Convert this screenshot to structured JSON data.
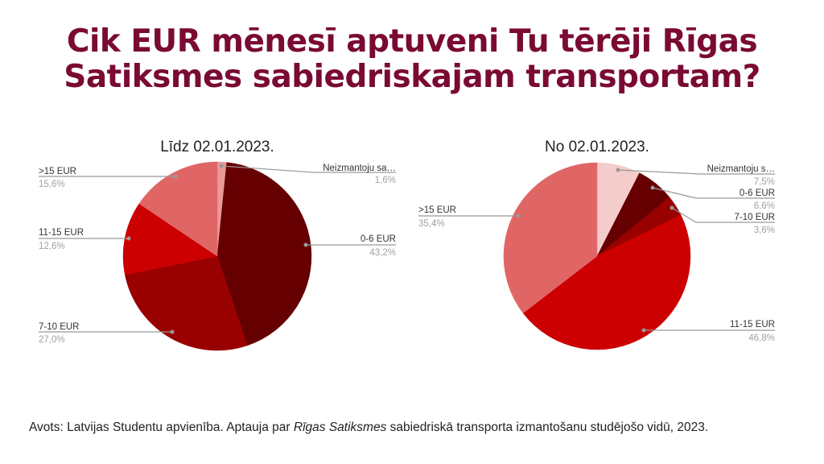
{
  "title_line1": "Cik EUR mēnesī aptuveni Tu tērēji Rīgas",
  "title_line2": "Satiksmes sabiedriskajam transportam?",
  "chart_data": [
    {
      "type": "pie",
      "title": "Līdz 02.01.2023.",
      "labels": [
        "Neizmantoju sa…",
        "0-6 EUR",
        "7-10 EUR",
        "11-15 EUR",
        ">15 EUR"
      ],
      "values": [
        1.6,
        43.2,
        27.0,
        12.6,
        15.6
      ],
      "value_labels": [
        "1,6%",
        "43,2%",
        "27,0%",
        "12,6%",
        "15,6%"
      ],
      "colors": [
        "#ea9999",
        "#660000",
        "#990000",
        "#cc0000",
        "#e06666"
      ]
    },
    {
      "type": "pie",
      "title": "No 02.01.2023.",
      "labels": [
        "Neizmantoju s…",
        "0-6 EUR",
        "7-10 EUR",
        "11-15 EUR",
        ">15 EUR"
      ],
      "values": [
        7.5,
        6.6,
        3.6,
        46.8,
        35.4
      ],
      "value_labels": [
        "7,5%",
        "6,6%",
        "3,6%",
        "46,8%",
        "35,4%"
      ],
      "colors": [
        "#f4cccc",
        "#660000",
        "#990000",
        "#cc0000",
        "#e06666"
      ]
    }
  ],
  "footer": {
    "prefix": "Avots: Latvijas Studentu apvienība. Aptauja par ",
    "italic": "Rīgas Satiksmes",
    "suffix": " sabiedriskā transporta izmantošanu studējošo vidū, 2023."
  }
}
